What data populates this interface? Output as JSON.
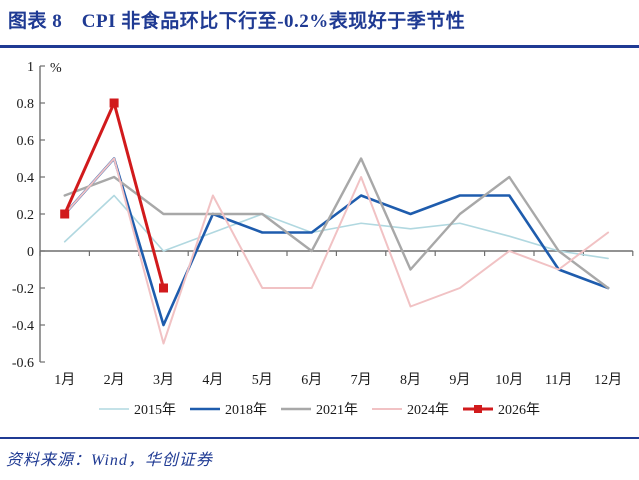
{
  "header": {
    "title": "图表 8　CPI 非食品环比下行至-0.2%表现好于季节性"
  },
  "footer": {
    "source": "资料来源：Wind，华创证券"
  },
  "colors": {
    "accent_navy": "#1f3a93",
    "axis_gray": "#6e6e6e",
    "label_black": "#1a1a1a"
  },
  "chart_data": {
    "type": "line",
    "title": "",
    "xlabel": "",
    "ylabel": "%",
    "unit_label": "%",
    "ylim": [
      -0.6,
      1.0
    ],
    "grid": false,
    "legend_position": "bottom",
    "categories": [
      "1月",
      "2月",
      "3月",
      "4月",
      "5月",
      "6月",
      "7月",
      "8月",
      "9月",
      "10月",
      "11月",
      "12月"
    ],
    "y_axis": {
      "ticks": [
        {
          "label": "1",
          "value": 1.0
        },
        {
          "label": "0.8",
          "value": 0.8
        },
        {
          "label": "0.6",
          "value": 0.6
        },
        {
          "label": "0.4",
          "value": 0.4
        },
        {
          "label": "0.2",
          "value": 0.2
        },
        {
          "label": "0",
          "value": 0.0
        },
        {
          "label": "-0.2",
          "value": -0.2
        },
        {
          "label": "-0.4",
          "value": -0.4
        },
        {
          "label": "-0.6",
          "value": -0.6
        }
      ]
    },
    "series": [
      {
        "name": "2015年",
        "color": "#b1d8e0",
        "width": 1.6,
        "marker": "none",
        "values": [
          0.05,
          0.3,
          0.0,
          0.1,
          0.2,
          0.1,
          0.15,
          0.12,
          0.15,
          0.08,
          0.0,
          -0.04
        ]
      },
      {
        "name": "2018年",
        "color": "#1e5cad",
        "width": 2.6,
        "marker": "none",
        "values": [
          0.2,
          0.5,
          -0.4,
          0.2,
          0.1,
          0.1,
          0.3,
          0.2,
          0.3,
          0.3,
          -0.1,
          -0.2
        ]
      },
      {
        "name": "2021年",
        "color": "#a8a8a8",
        "width": 2.4,
        "marker": "none",
        "values": [
          0.3,
          0.4,
          0.2,
          0.2,
          0.2,
          0.0,
          0.5,
          -0.1,
          0.2,
          0.4,
          0.0,
          -0.2
        ]
      },
      {
        "name": "2024年",
        "color": "#f1c2c4",
        "width": 2.0,
        "marker": "none",
        "values": [
          0.2,
          0.5,
          -0.5,
          0.3,
          -0.2,
          -0.2,
          0.4,
          -0.3,
          -0.2,
          0.0,
          -0.1,
          0.1
        ]
      },
      {
        "name": "2026年",
        "color": "#d11a1c",
        "width": 3.0,
        "marker": "square",
        "values": [
          0.2,
          0.8,
          -0.2,
          null,
          null,
          null,
          null,
          null,
          null,
          null,
          null,
          null
        ]
      }
    ]
  }
}
